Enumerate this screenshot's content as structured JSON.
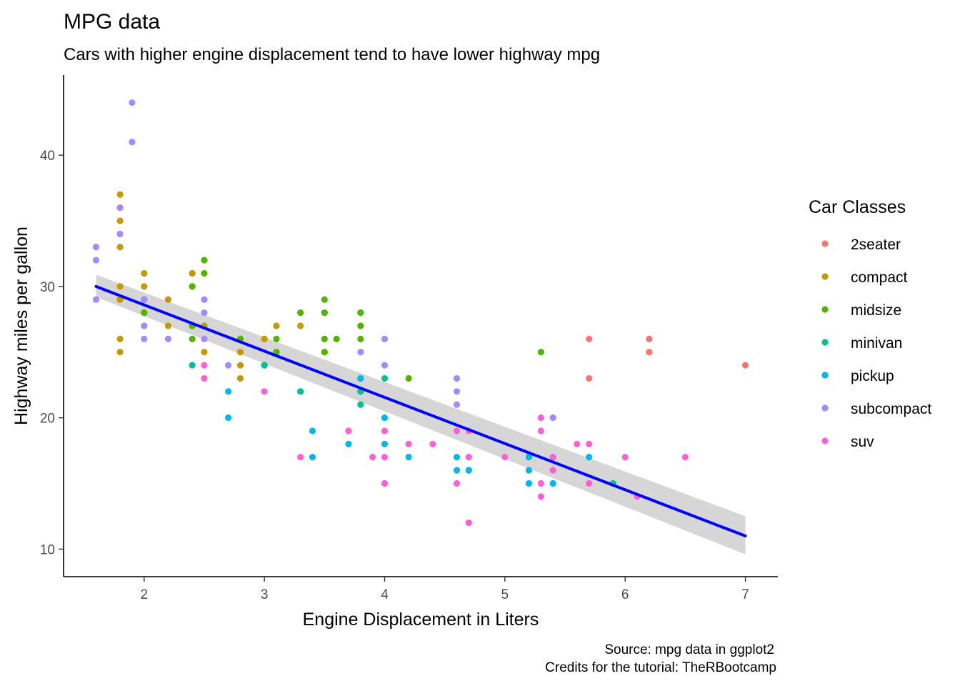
{
  "chart_data": {
    "type": "scatter",
    "title": "MPG data",
    "subtitle": "Cars with higher engine displacement tend to have lower highway mpg",
    "xlabel": "Engine Displacement in Liters",
    "ylabel": "Highway miles per gallon",
    "caption_lines": [
      "Source: mpg data in ggplot2",
      "Credits for the tutorial: TheRBootcamp"
    ],
    "xlim": [
      1.33,
      7.27
    ],
    "ylim": [
      7.9,
      46.1
    ],
    "x_ticks": [
      2,
      3,
      4,
      5,
      6,
      7
    ],
    "y_ticks": [
      10,
      20,
      30,
      40
    ],
    "grid": false,
    "legend_title": "Car Classes",
    "legend_position": "right",
    "series": [
      {
        "name": "2seater",
        "color": "#F8766D",
        "points": [
          [
            5.7,
            26
          ],
          [
            5.7,
            23
          ],
          [
            6.2,
            26
          ],
          [
            6.2,
            25
          ],
          [
            7.0,
            24
          ]
        ]
      },
      {
        "name": "compact",
        "color": "#C49A00",
        "points": [
          [
            1.8,
            29
          ],
          [
            1.8,
            29
          ],
          [
            2.0,
            31
          ],
          [
            2.0,
            30
          ],
          [
            2.8,
            26
          ],
          [
            2.8,
            26
          ],
          [
            3.1,
            27
          ],
          [
            1.8,
            26
          ],
          [
            1.8,
            25
          ],
          [
            2.0,
            28
          ],
          [
            2.0,
            29
          ],
          [
            2.8,
            25
          ],
          [
            2.8,
            25
          ],
          [
            3.1,
            25
          ],
          [
            2.2,
            29
          ],
          [
            2.2,
            27
          ],
          [
            2.4,
            31
          ],
          [
            2.4,
            31
          ],
          [
            3.0,
            26
          ],
          [
            2.4,
            30
          ],
          [
            3.3,
            27
          ],
          [
            3.0,
            26
          ],
          [
            1.8,
            37
          ],
          [
            1.8,
            35
          ],
          [
            1.8,
            33
          ],
          [
            1.8,
            30
          ],
          [
            2.0,
            29
          ],
          [
            2.4,
            27
          ],
          [
            2.5,
            25
          ],
          [
            2.5,
            27
          ],
          [
            2.8,
            23
          ],
          [
            2.8,
            24
          ]
        ]
      },
      {
        "name": "midsize",
        "color": "#53B400",
        "points": [
          [
            2.8,
            26
          ],
          [
            3.1,
            25
          ],
          [
            2.4,
            26
          ],
          [
            2.4,
            27
          ],
          [
            2.4,
            30
          ],
          [
            2.5,
            31
          ],
          [
            2.5,
            32
          ],
          [
            3.3,
            28
          ],
          [
            3.5,
            26
          ],
          [
            3.5,
            25
          ],
          [
            3.5,
            28
          ],
          [
            3.5,
            29
          ],
          [
            3.8,
            26
          ],
          [
            3.8,
            28
          ],
          [
            3.8,
            27
          ],
          [
            3.6,
            26
          ],
          [
            4.2,
            23
          ],
          [
            2.0,
            28
          ],
          [
            2.0,
            29
          ],
          [
            3.1,
            26
          ],
          [
            3.5,
            28
          ],
          [
            5.3,
            25
          ],
          [
            3.0,
            24
          ],
          [
            3.8,
            28
          ],
          [
            3.5,
            25
          ]
        ]
      },
      {
        "name": "minivan",
        "color": "#00C094",
        "points": [
          [
            2.4,
            24
          ],
          [
            3.0,
            24
          ],
          [
            3.3,
            22
          ],
          [
            3.3,
            22
          ],
          [
            3.8,
            21
          ],
          [
            3.8,
            22
          ],
          [
            3.8,
            23
          ],
          [
            4.0,
            23
          ],
          [
            5.9,
            15
          ]
        ]
      },
      {
        "name": "pickup",
        "color": "#00B6EB",
        "points": [
          [
            2.7,
            20
          ],
          [
            2.7,
            22
          ],
          [
            3.4,
            19
          ],
          [
            3.4,
            17
          ],
          [
            4.0,
            20
          ],
          [
            4.0,
            18
          ],
          [
            4.7,
            17
          ],
          [
            4.7,
            16
          ],
          [
            4.7,
            16
          ],
          [
            5.2,
            17
          ],
          [
            5.2,
            15
          ],
          [
            3.7,
            18
          ],
          [
            4.6,
            17
          ],
          [
            4.6,
            16
          ],
          [
            5.4,
            15
          ],
          [
            5.4,
            17
          ],
          [
            5.7,
            17
          ],
          [
            4.2,
            17
          ],
          [
            5.2,
            16
          ],
          [
            3.8,
            23
          ]
        ]
      },
      {
        "name": "subcompact",
        "color": "#A58AFF",
        "points": [
          [
            1.6,
            33
          ],
          [
            1.6,
            32
          ],
          [
            1.6,
            29
          ],
          [
            1.8,
            34
          ],
          [
            1.8,
            36
          ],
          [
            1.8,
            36
          ],
          [
            1.9,
            44
          ],
          [
            1.9,
            41
          ],
          [
            2.0,
            29
          ],
          [
            2.0,
            27
          ],
          [
            2.0,
            26
          ],
          [
            2.2,
            26
          ],
          [
            2.5,
            26
          ],
          [
            2.5,
            29
          ],
          [
            2.5,
            28
          ],
          [
            2.7,
            24
          ],
          [
            3.8,
            25
          ],
          [
            4.0,
            24
          ],
          [
            4.0,
            26
          ],
          [
            4.6,
            23
          ],
          [
            4.6,
            22
          ],
          [
            4.6,
            21
          ],
          [
            5.4,
            20
          ]
        ]
      },
      {
        "name": "suv",
        "color": "#FB61D7",
        "points": [
          [
            4.7,
            12
          ],
          [
            5.7,
            15
          ],
          [
            5.3,
            19
          ],
          [
            5.3,
            20
          ],
          [
            6.0,
            17
          ],
          [
            4.6,
            15
          ],
          [
            5.4,
            17
          ],
          [
            5.4,
            16
          ],
          [
            5.6,
            18
          ],
          [
            5.7,
            18
          ],
          [
            6.5,
            17
          ],
          [
            3.7,
            19
          ],
          [
            3.9,
            17
          ],
          [
            4.7,
            19
          ],
          [
            4.7,
            17
          ],
          [
            5.3,
            14
          ],
          [
            4.2,
            18
          ],
          [
            4.0,
            15
          ],
          [
            4.0,
            17
          ],
          [
            4.6,
            19
          ],
          [
            5.0,
            17
          ],
          [
            4.0,
            19
          ],
          [
            4.0,
            15
          ],
          [
            4.4,
            18
          ],
          [
            2.5,
            23
          ],
          [
            2.5,
            24
          ],
          [
            3.3,
            17
          ],
          [
            3.0,
            22
          ],
          [
            6.1,
            14
          ],
          [
            5.3,
            15
          ]
        ]
      }
    ],
    "trend_line": {
      "method": "lm",
      "color": "#0000FF",
      "x": [
        1.6,
        7.0
      ],
      "y": [
        30.0,
        11.0
      ],
      "se_band": {
        "lower": [
          29.2,
          9.6
        ],
        "upper": [
          30.9,
          12.5
        ]
      }
    }
  }
}
